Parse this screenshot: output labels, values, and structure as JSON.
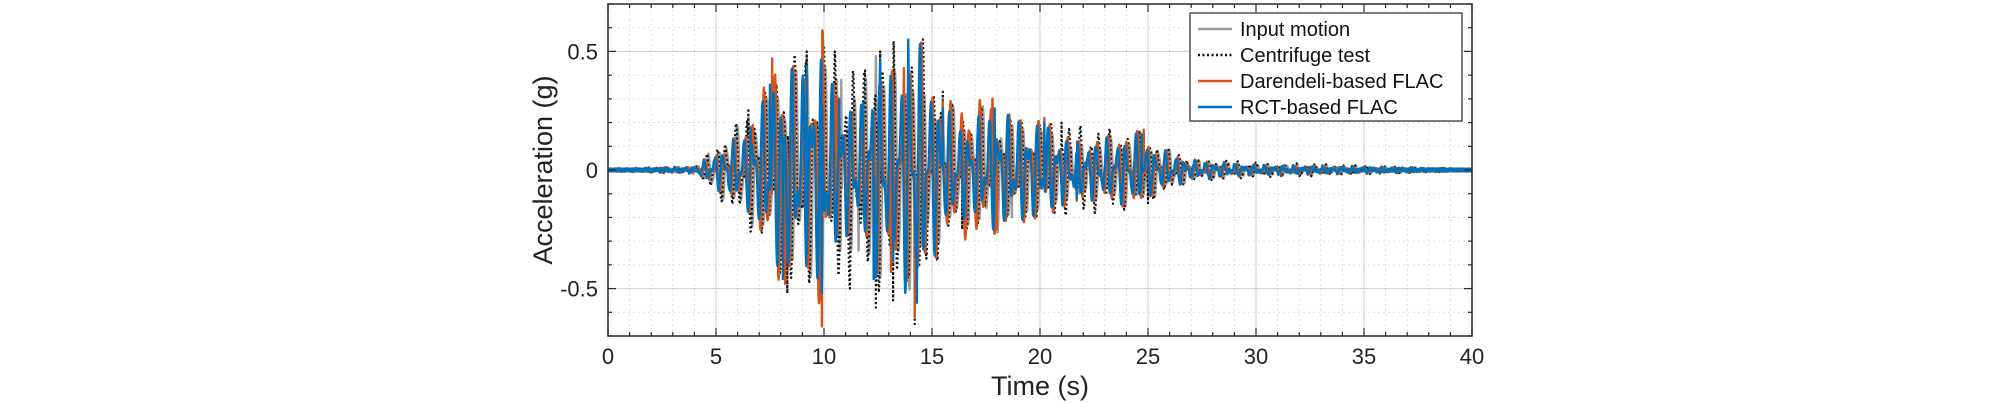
{
  "chart_data": {
    "type": "line",
    "xlabel": "Time (s)",
    "ylabel": "Acceleration (g)",
    "xlim": [
      0,
      40
    ],
    "ylim": [
      -0.7,
      0.7
    ],
    "xticks": [
      0,
      5,
      10,
      15,
      20,
      25,
      30,
      35,
      40
    ],
    "xtick_labels": [
      "0",
      "5",
      "10",
      "15",
      "20",
      "25",
      "30",
      "35",
      "40"
    ],
    "yticks": [
      -0.5,
      0,
      0.5
    ],
    "ytick_labels": [
      "-0.5",
      "0",
      "0.5"
    ],
    "grid": true,
    "legend_position": "top-right",
    "series": [
      {
        "name": "Input motion",
        "color": "#9b9b9b",
        "style": "solid",
        "points": [
          [
            0,
            0
          ],
          [
            4,
            0.01
          ],
          [
            6.5,
            0.22
          ],
          [
            7.5,
            0.32
          ],
          [
            8.3,
            -0.42
          ],
          [
            9.2,
            0.48
          ],
          [
            9.9,
            -0.5
          ],
          [
            10.8,
            0.38
          ],
          [
            11.6,
            -0.34
          ],
          [
            12.4,
            0.48
          ],
          [
            13.2,
            -0.4
          ],
          [
            13.9,
            0.52
          ],
          [
            14.5,
            -0.32
          ],
          [
            15.5,
            0.3
          ],
          [
            16.5,
            -0.22
          ],
          [
            17.8,
            0.3
          ],
          [
            18.7,
            -0.2
          ],
          [
            20.2,
            0.18
          ],
          [
            21.8,
            -0.1
          ],
          [
            24.6,
            0.16
          ],
          [
            25,
            -0.12
          ],
          [
            27,
            0.04
          ],
          [
            30,
            0.02
          ],
          [
            40,
            0
          ]
        ]
      },
      {
        "name": "Centrifuge test",
        "color": "#111111",
        "style": "dotted",
        "points": [
          [
            0,
            0
          ],
          [
            4,
            0.01
          ],
          [
            6.5,
            0.26
          ],
          [
            7.5,
            0.36
          ],
          [
            8.3,
            -0.52
          ],
          [
            9.2,
            0.5
          ],
          [
            9.9,
            -0.58
          ],
          [
            10.5,
            0.5
          ],
          [
            11.2,
            -0.5
          ],
          [
            11.9,
            0.42
          ],
          [
            12.4,
            -0.58
          ],
          [
            12.6,
            0.5
          ],
          [
            13.2,
            -0.55
          ],
          [
            13.9,
            0.48
          ],
          [
            14.2,
            -0.65
          ],
          [
            15.5,
            0.33
          ],
          [
            16.4,
            -0.25
          ],
          [
            17.2,
            0.28
          ],
          [
            18.6,
            0.22
          ],
          [
            21,
            0.2
          ],
          [
            24.8,
            0.16
          ],
          [
            25,
            -0.14
          ],
          [
            27,
            0.05
          ],
          [
            30,
            0.03
          ],
          [
            40,
            0
          ]
        ]
      },
      {
        "name": "Darendeli-based FLAC",
        "color": "#d95319",
        "style": "solid",
        "points": [
          [
            0,
            0
          ],
          [
            4,
            0.01
          ],
          [
            6.7,
            0.19
          ],
          [
            7.6,
            0.47
          ],
          [
            8.2,
            -0.48
          ],
          [
            9.2,
            0.42
          ],
          [
            9.9,
            -0.66
          ],
          [
            10.6,
            0.31
          ],
          [
            11.7,
            0.25
          ],
          [
            12.3,
            -0.43
          ],
          [
            12.6,
            0.46
          ],
          [
            13.1,
            -0.43
          ],
          [
            13.7,
            0.43
          ],
          [
            14.2,
            -0.62
          ],
          [
            15.5,
            0.29
          ],
          [
            17.8,
            0.3
          ],
          [
            18,
            -0.25
          ],
          [
            20.2,
            0.22
          ],
          [
            21.7,
            -0.13
          ],
          [
            24.8,
            0.17
          ],
          [
            25.1,
            -0.11
          ],
          [
            27,
            0.04
          ],
          [
            30,
            0.02
          ],
          [
            40,
            0
          ]
        ]
      },
      {
        "name": "RCT-based FLAC",
        "color": "#0072bd",
        "style": "solid",
        "points": [
          [
            0,
            0
          ],
          [
            4,
            0.01
          ],
          [
            6.6,
            0.18
          ],
          [
            7.5,
            0.36
          ],
          [
            8.1,
            -0.46
          ],
          [
            9.2,
            0.44
          ],
          [
            9.9,
            -0.52
          ],
          [
            10.7,
            0.3
          ],
          [
            11.8,
            0.28
          ],
          [
            12.3,
            -0.46
          ],
          [
            12.6,
            0.46
          ],
          [
            13.2,
            -0.38
          ],
          [
            13.9,
            0.55
          ],
          [
            14.3,
            -0.56
          ],
          [
            15.5,
            0.26
          ],
          [
            16.5,
            -0.2
          ],
          [
            17.9,
            0.26
          ],
          [
            20.2,
            0.2
          ],
          [
            21.7,
            -0.12
          ],
          [
            24.7,
            0.15
          ],
          [
            25.1,
            -0.1
          ],
          [
            27,
            0.04
          ],
          [
            30,
            0.02
          ],
          [
            40,
            0
          ]
        ]
      }
    ]
  }
}
